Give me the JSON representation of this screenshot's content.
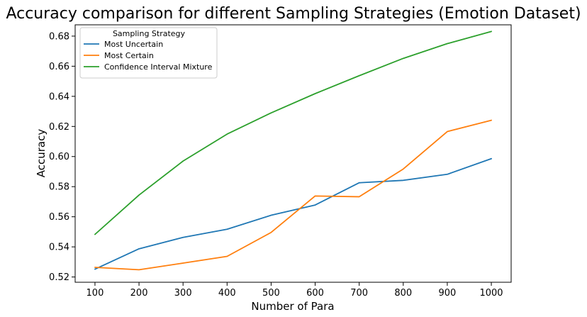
{
  "chart_data": {
    "type": "line",
    "title": "Accuracy comparison for different Sampling Strategies (Emotion Dataset)",
    "xlabel": "Number of Para",
    "ylabel": "Accuracy",
    "x": [
      100,
      200,
      300,
      400,
      500,
      600,
      700,
      800,
      900,
      1000
    ],
    "xlim": [
      55,
      1045
    ],
    "ylim": [
      0.5165,
      0.6875
    ],
    "yticks": [
      0.52,
      0.54,
      0.56,
      0.58,
      0.6,
      0.62,
      0.64,
      0.66,
      0.68
    ],
    "ytick_labels": [
      "0.52",
      "0.54",
      "0.56",
      "0.58",
      "0.60",
      "0.62",
      "0.64",
      "0.66",
      "0.68"
    ],
    "xticks": [
      100,
      200,
      300,
      400,
      500,
      600,
      700,
      800,
      900,
      1000
    ],
    "xtick_labels": [
      "100",
      "200",
      "300",
      "400",
      "500",
      "600",
      "700",
      "800",
      "900",
      "1000"
    ],
    "grid": false,
    "legend": {
      "title": "Sampling Strategy",
      "placement": "top-left"
    },
    "series": [
      {
        "name": "Most Uncertain",
        "color": "#1f77b4",
        "values": [
          0.5252,
          0.5387,
          0.5463,
          0.5517,
          0.561,
          0.5678,
          0.5826,
          0.5842,
          0.5882,
          0.5986
        ]
      },
      {
        "name": "Most Certain",
        "color": "#ff7f0e",
        "values": [
          0.5264,
          0.5248,
          0.5292,
          0.5337,
          0.5496,
          0.5738,
          0.5733,
          0.5917,
          0.6166,
          0.6241
        ]
      },
      {
        "name": "Confidence Interval Mixture",
        "color": "#2ca02c",
        "values": [
          0.5483,
          0.5744,
          0.597,
          0.6149,
          0.629,
          0.6418,
          0.6537,
          0.6652,
          0.675,
          0.6831
        ]
      }
    ]
  }
}
